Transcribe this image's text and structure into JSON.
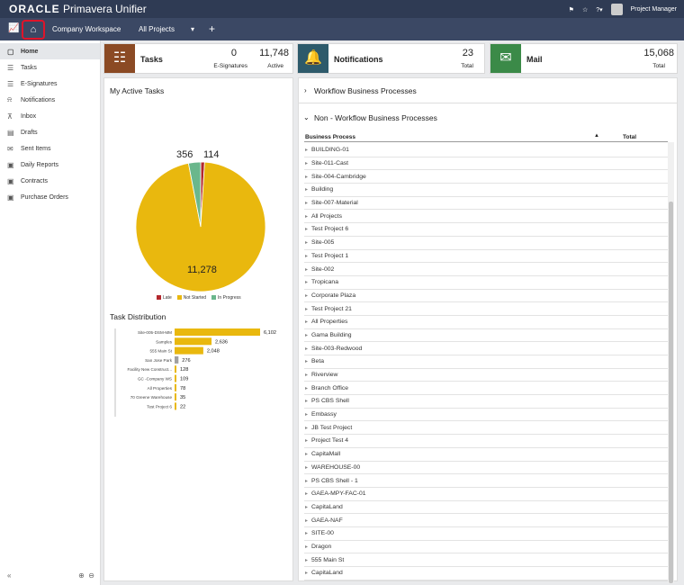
{
  "header": {
    "brand_oracle": "ORACLE",
    "brand_product": " Primavera Unifier",
    "user": "Project Manager"
  },
  "nav": {
    "tabs": [
      "Company Workspace",
      "All Projects"
    ],
    "add_label": "+"
  },
  "sidebar": {
    "items": [
      {
        "label": "Home",
        "icon": "home-doc-icon"
      },
      {
        "label": "Tasks",
        "icon": "tasks-icon"
      },
      {
        "label": "E-Signatures",
        "icon": "esign-icon"
      },
      {
        "label": "Notifications",
        "icon": "bell-icon"
      },
      {
        "label": "Inbox",
        "icon": "inbox-icon"
      },
      {
        "label": "Drafts",
        "icon": "drafts-icon"
      },
      {
        "label": "Sent Items",
        "icon": "mail-icon"
      },
      {
        "label": "Daily Reports",
        "icon": "report-icon"
      },
      {
        "label": "Contracts",
        "icon": "contract-icon"
      },
      {
        "label": "Purchase Orders",
        "icon": "po-icon"
      }
    ]
  },
  "cards": {
    "tasks": {
      "title": "Tasks",
      "esign_count": "0",
      "esign_label": "E-Signatures",
      "active_count": "11,748",
      "active_label": "Active",
      "color": "#8b4a24"
    },
    "notifications": {
      "title": "Notifications",
      "total": "23",
      "total_label": "Total",
      "color": "#2d5a6b"
    },
    "mail": {
      "title": "Mail",
      "total": "15,068",
      "total_label": "Total",
      "color": "#3b8a48"
    }
  },
  "active_tasks": {
    "title": "My Active Tasks",
    "legend": [
      {
        "label": "Late",
        "color": "#b3282d"
      },
      {
        "label": "Not Started",
        "color": "#e9b80e"
      },
      {
        "label": "In Progress",
        "color": "#6ab78c"
      }
    ]
  },
  "task_distribution": {
    "title": "Task Distribution"
  },
  "chart_data": [
    {
      "type": "pie",
      "title": "My Active Tasks",
      "labels": [
        "Late",
        "Not Started",
        "In Progress"
      ],
      "values": [
        114,
        11278,
        356
      ],
      "colors": [
        "#b3282d",
        "#e9b80e",
        "#6ab78c"
      ]
    },
    {
      "type": "bar",
      "title": "Task Distribution",
      "orientation": "horizontal",
      "categories": [
        "Site-005-DSM-MM",
        "Samples",
        "555 Main St",
        "San Jose Park",
        "Facility New Construct...",
        "GC -Company WS",
        "All Properties",
        "70 Greene Warehouse",
        "Test Project 6"
      ],
      "values": [
        6102,
        2636,
        2048,
        276,
        128,
        109,
        78,
        35,
        22
      ],
      "value_labels": [
        "6,102",
        "2,636",
        "2,048",
        "276",
        "128",
        "109",
        "78",
        "35",
        "22"
      ],
      "colors": [
        "#e9b80e",
        "#e9b80e",
        "#e9b80e",
        "#a0a0a0",
        "#e9b80e",
        "#e9b80e",
        "#e9b80e",
        "#e9b80e",
        "#e9b80e"
      ]
    }
  ],
  "processes": {
    "workflow_title": "Workflow Business Processes",
    "nonworkflow_title": "Non - Workflow Business Processes",
    "col_process": "Business Process",
    "col_total": "Total",
    "rows": [
      "BUILDING-01",
      "Site-011-Cast",
      "Site-004-Cambridge",
      "Building",
      "Site-007-Material",
      "All Projects",
      "Test Project 6",
      "Site-005",
      "Test Project 1",
      "Site-002",
      "Tropicana",
      "Corporate Plaza",
      "Test Project 21",
      "All Properties",
      "Gama Building",
      "Site-003-Redwood",
      "Beta",
      "Riverview",
      "Branch Office",
      "PS CBS Shell",
      "Embassy",
      "JB Test Project",
      "Project Test 4",
      "CapitaMall",
      "WAREHOUSE-00",
      "PS CBS Shell - 1",
      "GAEA-MPY-FAC-01",
      "CapitaLand",
      "GAEA-NAF",
      "SITE-00",
      "Dragon",
      "555 Main St",
      "CapitaLand"
    ]
  }
}
